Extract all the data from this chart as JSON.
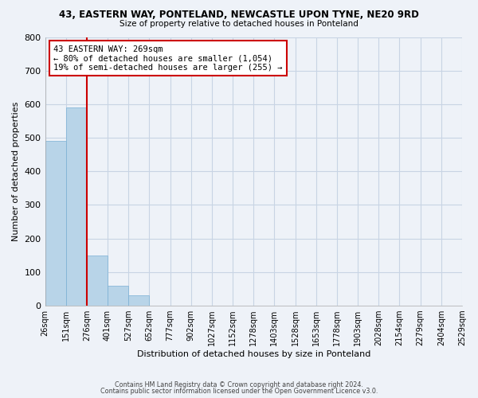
{
  "title1": "43, EASTERN WAY, PONTELAND, NEWCASTLE UPON TYNE, NE20 9RD",
  "title2": "Size of property relative to detached houses in Ponteland",
  "xlabel": "Distribution of detached houses by size in Ponteland",
  "ylabel": "Number of detached properties",
  "bar_values": [
    490,
    590,
    150,
    60,
    30,
    0,
    0,
    0,
    0,
    0,
    0,
    0,
    0,
    0,
    0,
    0,
    0,
    0,
    0,
    0
  ],
  "bar_labels": [
    "26sqm",
    "151sqm",
    "276sqm",
    "401sqm",
    "527sqm",
    "652sqm",
    "777sqm",
    "902sqm",
    "1027sqm",
    "1152sqm",
    "1278sqm",
    "1403sqm",
    "1528sqm",
    "1653sqm",
    "1778sqm",
    "1903sqm",
    "2028sqm",
    "2154sqm",
    "2279sqm",
    "2404sqm",
    "2529sqm"
  ],
  "bar_color": "#b8d4e8",
  "bar_edge_color": "#7aafd4",
  "highlight_color": "#cc0000",
  "vline_bar_index": 2,
  "annotation_title": "43 EASTERN WAY: 269sqm",
  "annotation_line1": "← 80% of detached houses are smaller (1,054)",
  "annotation_line2": "19% of semi-detached houses are larger (255) →",
  "annotation_box_color": "#ffffff",
  "annotation_box_edge": "#cc0000",
  "ylim": [
    0,
    800
  ],
  "yticks": [
    0,
    100,
    200,
    300,
    400,
    500,
    600,
    700,
    800
  ],
  "footer1": "Contains HM Land Registry data © Crown copyright and database right 2024.",
  "footer2": "Contains public sector information licensed under the Open Government Licence v3.0.",
  "bg_color": "#eef2f8",
  "plot_bg_color": "#eef2f8",
  "grid_color": "#c8d4e4"
}
